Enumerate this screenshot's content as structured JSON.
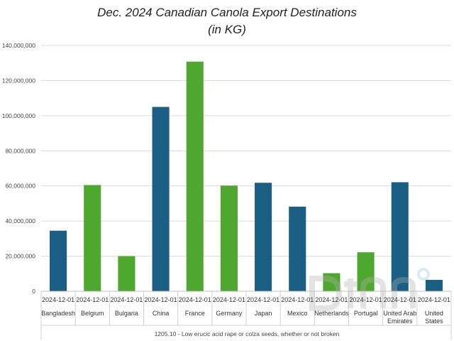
{
  "chart_data": {
    "type": "bar",
    "title": "Dec. 2024 Canadian Canola Export Destinations",
    "subtitle": "(in KG)",
    "ylim": [
      0,
      140000000
    ],
    "yticks": [
      "0",
      "20,000,000",
      "40,000,000",
      "60,000,000",
      "80,000,000",
      "100,000,000",
      "120,000,000",
      "140,000,000"
    ],
    "ytick_values": [
      0,
      20000000,
      40000000,
      60000000,
      80000000,
      100000000,
      120000000,
      140000000
    ],
    "grid": true,
    "period_label": "2024-12-01",
    "categories": [
      "Bangladesh",
      "Belgium",
      "Bulgaria",
      "China",
      "France",
      "Germany",
      "Japan",
      "Mexico",
      "Netherlands",
      "Portugal",
      "United Arab Emirates",
      "United States"
    ],
    "category_lines": [
      [
        "Bangladesh"
      ],
      [
        "Belgium"
      ],
      [
        "Bulgaria"
      ],
      [
        "China"
      ],
      [
        "France"
      ],
      [
        "Germany"
      ],
      [
        "Japan"
      ],
      [
        "Mexico"
      ],
      [
        "Netherlands"
      ],
      [
        "Portugal"
      ],
      [
        "United Arab",
        "Emirates"
      ],
      [
        "United",
        "States"
      ]
    ],
    "values": [
      34500000,
      60500000,
      20000000,
      105000000,
      130800000,
      60200000,
      61800000,
      48200000,
      10300000,
      22200000,
      62100000,
      6500000
    ],
    "bar_colors": [
      "#1a5e83",
      "#4ea72e",
      "#4ea72e",
      "#1a5e83",
      "#4ea72e",
      "#4ea72e",
      "#1a5e83",
      "#1a5e83",
      "#4ea72e",
      "#4ea72e",
      "#1a5e83",
      "#1a5e83"
    ],
    "footer_label": "1205.10 - Low erucic acid rape or colza seeds, whether or not broken"
  }
}
